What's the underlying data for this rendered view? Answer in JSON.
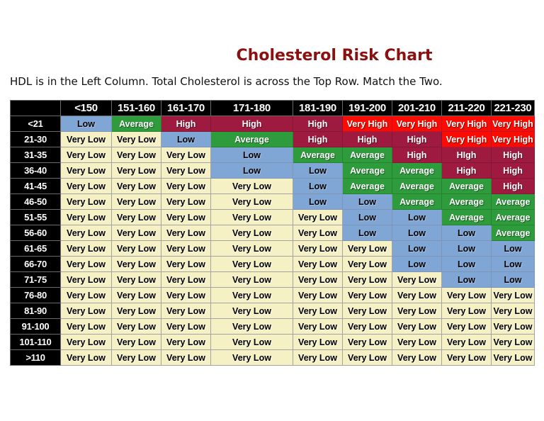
{
  "page": {
    "title": "Cholesterol Risk Chart",
    "subtitle": "HDL is in the Left Column. Total Cholesterol is across the Top Row. Match the Two."
  },
  "chart_data": {
    "type": "heatmap",
    "title": "Cholesterol Risk Chart",
    "subtitle": "HDL is in the Left Column. Total Cholesterol is across the Top Row. Match the Two.",
    "columns": [
      "<150",
      "151-160",
      "161-170",
      "171-180",
      "181-190",
      "191-200",
      "201-210",
      "211-220",
      "221-230"
    ],
    "rows": [
      "<21",
      "21-30",
      "31-35",
      "36-40",
      "41-45",
      "46-50",
      "51-55",
      "56-60",
      "61-65",
      "66-70",
      "71-75",
      "76-80",
      "81-90",
      "91-100",
      "101-110",
      ">110"
    ],
    "values": [
      [
        "Low",
        "Average",
        "High",
        "High",
        "High",
        "Very High",
        "Very High",
        "Very High",
        "Very High"
      ],
      [
        "Very Low",
        "Very Low",
        "Low",
        "Average",
        "High",
        "High",
        "High",
        "Very High",
        "Very High"
      ],
      [
        "Very Low",
        "Very Low",
        "Very Low",
        "Low",
        "Average",
        "Average",
        "High",
        "HIgh",
        "High"
      ],
      [
        "Very Low",
        "Very Low",
        "Very Low",
        "Low",
        "Low",
        "Average",
        "Average",
        "High",
        "High"
      ],
      [
        "Very Low",
        "Very Low",
        "Very Low",
        "Very Low",
        "Low",
        "Average",
        "Average",
        "Average",
        "High"
      ],
      [
        "Very Low",
        "Very Low",
        "Very Low",
        "Very Low",
        "Low",
        "Low",
        "Average",
        "Average",
        "Average"
      ],
      [
        "Very Low",
        "Very Low",
        "Very Low",
        "Very Low",
        "Very Low",
        "Low",
        "Low",
        "Average",
        "Average"
      ],
      [
        "Very Low",
        "Very Low",
        "Very Low",
        "Very Low",
        "Very Low",
        "Low",
        "Low",
        "Low",
        "Average"
      ],
      [
        "Very Low",
        "Very Low",
        "Very Low",
        "Very Low",
        "Very Low",
        "Very Low",
        "Low",
        "Low",
        "Low"
      ],
      [
        "Very Low",
        "Very Low",
        "Very Low",
        "Very Low",
        "Very Low",
        "Very Low",
        "Low",
        "Low",
        "Low"
      ],
      [
        "Very Low",
        "Very Low",
        "Very Low",
        "Very Low",
        "Very Low",
        "Very Low",
        "Very Low",
        "Low",
        "Low"
      ],
      [
        "Very Low",
        "Very Low",
        "Very Low",
        "Very Low",
        "Very Low",
        "Very Low",
        "Very Low",
        "Very Low",
        "Very Low"
      ],
      [
        "Very Low",
        "Very Low",
        "Very Low",
        "Very Low",
        "Very Low",
        "Very Low",
        "Very Low",
        "Very Low",
        "Very Low"
      ],
      [
        "Very Low",
        "Very Low",
        "Very Low",
        "Very Low",
        "Very Low",
        "Very Low",
        "Very Low",
        "Very Low",
        "Very Low"
      ],
      [
        "Very Low",
        "Very Low",
        "Very Low",
        "Very Low",
        "Very Low",
        "Very Low",
        "Very Low",
        "Very Low",
        "Very Low"
      ],
      [
        "Very Low",
        "Very Low",
        "Very Low",
        "Very Low",
        "Very Low",
        "Very Low",
        "Very Low",
        "Very Low",
        "Very Low"
      ]
    ],
    "risk_levels": [
      "Very Low",
      "Low",
      "Average",
      "High",
      "Very High"
    ],
    "colors": {
      "very_low": "#F5F1C5",
      "low": "#7FA6D5",
      "average": "#2E9B3C",
      "high": "#9E1B3F",
      "very_high": "#FB0B02",
      "header_bg": "#000000",
      "header_text": "#FFFFFF",
      "title_text": "#8B1111"
    },
    "legend_position": "none",
    "grid": true
  }
}
